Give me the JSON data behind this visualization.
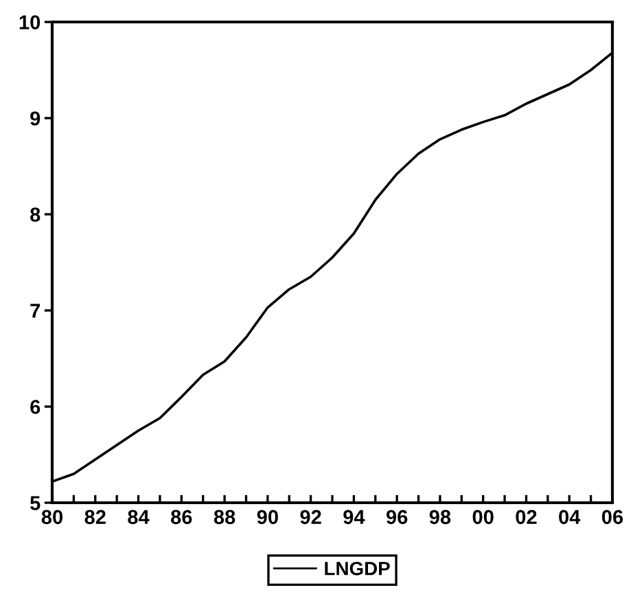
{
  "chart_data": {
    "type": "line",
    "x": [
      1980,
      1981,
      1982,
      1983,
      1984,
      1985,
      1986,
      1987,
      1988,
      1989,
      1990,
      1991,
      1992,
      1993,
      1994,
      1995,
      1996,
      1997,
      1998,
      1999,
      2000,
      2001,
      2002,
      2003,
      2004,
      2005,
      2006
    ],
    "series": [
      {
        "name": "LNGDP",
        "color": "#000000",
        "values": [
          5.22,
          5.3,
          5.45,
          5.6,
          5.75,
          5.88,
          6.1,
          6.33,
          6.47,
          6.72,
          7.03,
          7.22,
          7.35,
          7.55,
          7.8,
          8.15,
          8.42,
          8.63,
          8.78,
          8.88,
          8.96,
          9.03,
          9.15,
          9.25,
          9.35,
          9.5,
          9.68
        ]
      }
    ],
    "xlim": [
      1980,
      2006
    ],
    "xticks": [
      {
        "value": 1980,
        "label": "80"
      },
      {
        "value": 1981,
        "label": null
      },
      {
        "value": 1982,
        "label": "82"
      },
      {
        "value": 1983,
        "label": null
      },
      {
        "value": 1984,
        "label": "84"
      },
      {
        "value": 1985,
        "label": null
      },
      {
        "value": 1986,
        "label": "86"
      },
      {
        "value": 1987,
        "label": null
      },
      {
        "value": 1988,
        "label": "88"
      },
      {
        "value": 1989,
        "label": null
      },
      {
        "value": 1990,
        "label": "90"
      },
      {
        "value": 1991,
        "label": null
      },
      {
        "value": 1992,
        "label": "92"
      },
      {
        "value": 1993,
        "label": null
      },
      {
        "value": 1994,
        "label": "94"
      },
      {
        "value": 1995,
        "label": null
      },
      {
        "value": 1996,
        "label": "96"
      },
      {
        "value": 1997,
        "label": null
      },
      {
        "value": 1998,
        "label": "98"
      },
      {
        "value": 1999,
        "label": null
      },
      {
        "value": 2000,
        "label": "00"
      },
      {
        "value": 2001,
        "label": null
      },
      {
        "value": 2002,
        "label": "02"
      },
      {
        "value": 2003,
        "label": null
      },
      {
        "value": 2004,
        "label": "04"
      },
      {
        "value": 2005,
        "label": null
      },
      {
        "value": 2006,
        "label": "06"
      }
    ],
    "ylim": [
      5,
      10
    ],
    "yticks": [
      5,
      6,
      7,
      8,
      9,
      10
    ],
    "grid": false,
    "legend": "bottom",
    "marker": "none",
    "line_style": "solid"
  }
}
